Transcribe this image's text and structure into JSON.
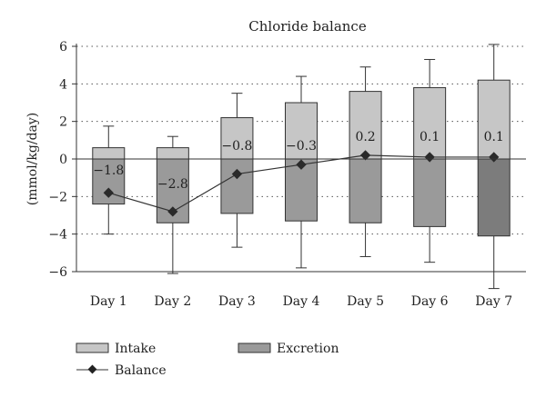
{
  "chart_data": {
    "type": "bar",
    "title": "Chloride balance",
    "ylabel": "(mmol/kg/day)",
    "xlabel": "",
    "ylim": [
      -6,
      6
    ],
    "yticks": [
      6,
      4,
      2,
      0,
      -2,
      -4,
      -6
    ],
    "ytick_labels": [
      "6",
      "4",
      "2",
      "0",
      "−2",
      "−4",
      "−6"
    ],
    "grid": "dotted horizontal",
    "legend_position": "bottom",
    "categories": [
      "Day 1",
      "Day 2",
      "Day 3",
      "Day 4",
      "Day 5",
      "Day 6",
      "Day 7"
    ],
    "series": [
      {
        "name": "Intake",
        "values": [
          0.6,
          0.6,
          2.2,
          3.0,
          3.6,
          3.8,
          4.2
        ],
        "error_upper": [
          1.75,
          1.2,
          3.5,
          4.4,
          4.9,
          5.3,
          6.1
        ],
        "color": "#c6c6c6"
      },
      {
        "name": "Excretion",
        "values": [
          -2.4,
          -3.4,
          -2.9,
          -3.3,
          -3.4,
          -3.6,
          -4.1
        ],
        "error_lower": [
          -4.0,
          -6.1,
          -4.7,
          -5.8,
          -5.2,
          -5.5,
          -6.9
        ],
        "colors": [
          "#9a9a9a",
          "#9a9a9a",
          "#9a9a9a",
          "#9a9a9a",
          "#9a9a9a",
          "#9a9a9a",
          "#7c7c7c"
        ]
      },
      {
        "name": "Balance",
        "type": "line",
        "values": [
          -1.8,
          -2.8,
          -0.8,
          -0.3,
          0.2,
          0.1,
          0.1
        ],
        "labels": [
          "−1.8",
          "−2.8",
          "−0.8",
          "−0.3",
          "0.2",
          "0.1",
          "0.1"
        ],
        "color": "#333333"
      }
    ],
    "legend": {
      "intake": "Intake",
      "excretion": "Excretion",
      "balance": "Balance"
    }
  }
}
